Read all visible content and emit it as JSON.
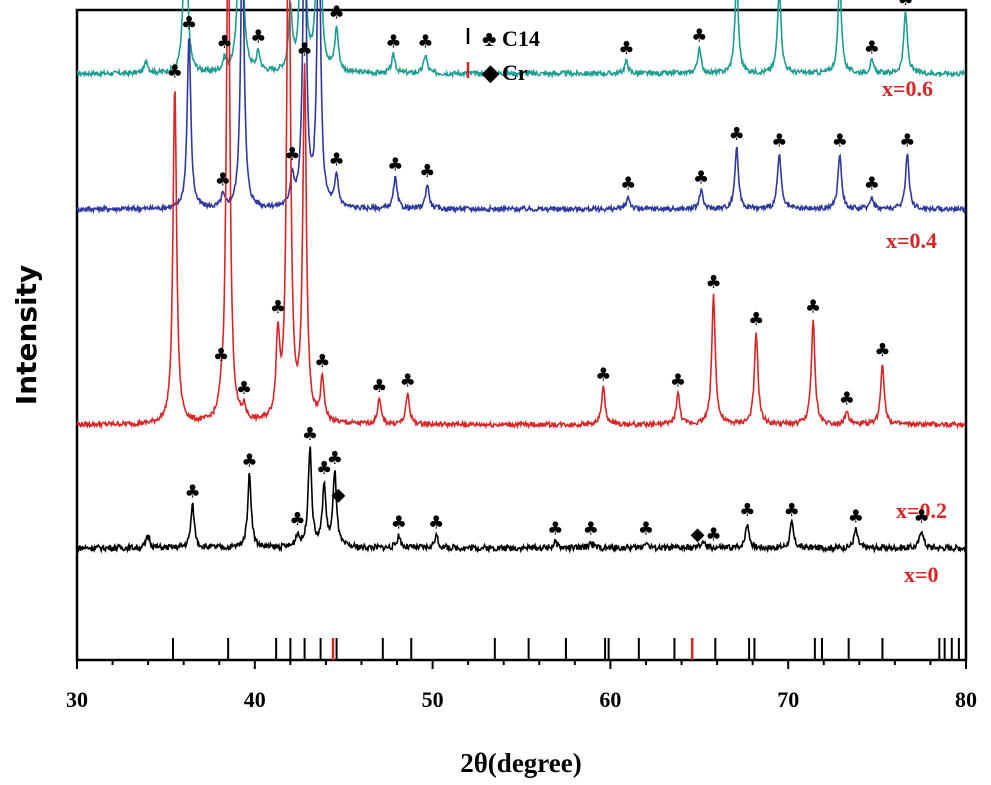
{
  "chart_data": {
    "type": "line",
    "title": "",
    "xlabel": "2θ(degree)",
    "ylabel": "Intensity",
    "xlim": [
      30,
      80
    ],
    "x_ticks": [
      30,
      40,
      50,
      60,
      70,
      80
    ],
    "x_minor_step": 2,
    "grid": false,
    "colors": {
      "C14": "#000000",
      "Cr": "#d62728"
    },
    "legend": {
      "position": "top-center",
      "entries": [
        {
          "name": "C14",
          "symbol": "♣",
          "line_color": "#000000"
        },
        {
          "name": "Cr",
          "symbol": "◆",
          "line_color": "#d62728"
        }
      ]
    },
    "series": [
      {
        "name": "x=0.6",
        "color": "#1e9d92",
        "baseline": 0.9,
        "noise": 0.004,
        "peaks": [
          [
            33.9,
            0.02
          ],
          [
            36.1,
            0.3
          ],
          [
            38.3,
            0.02
          ],
          [
            39.2,
            0.47
          ],
          [
            40.2,
            0.03
          ],
          [
            42.0,
            0.1
          ],
          [
            42.7,
            0.45
          ],
          [
            43.6,
            0.41
          ],
          [
            44.6,
            0.07
          ],
          [
            47.8,
            0.03
          ],
          [
            49.6,
            0.03
          ],
          [
            60.9,
            0.02
          ],
          [
            65.0,
            0.04
          ],
          [
            67.1,
            0.15
          ],
          [
            69.5,
            0.14
          ],
          [
            72.9,
            0.15
          ],
          [
            74.7,
            0.02
          ],
          [
            76.6,
            0.1
          ]
        ],
        "markers": [
          36.1,
          38.3,
          39.2,
          40.2,
          42.0,
          42.7,
          43.6,
          44.6,
          47.8,
          49.6,
          60.9,
          65.0,
          67.1,
          69.5,
          72.9,
          74.7,
          76.6
        ]
      },
      {
        "name": "x=0.4",
        "color": "#2e3a9e",
        "baseline": 0.68,
        "noise": 0.004,
        "peaks": [
          [
            36.3,
            0.28
          ],
          [
            38.2,
            0.02
          ],
          [
            39.3,
            0.45
          ],
          [
            42.1,
            0.05
          ],
          [
            42.8,
            0.5
          ],
          [
            43.6,
            0.48
          ],
          [
            44.6,
            0.05
          ],
          [
            47.9,
            0.05
          ],
          [
            49.7,
            0.04
          ],
          [
            61.0,
            0.02
          ],
          [
            65.1,
            0.03
          ],
          [
            67.1,
            0.1
          ],
          [
            69.5,
            0.09
          ],
          [
            72.9,
            0.09
          ],
          [
            74.7,
            0.02
          ],
          [
            76.7,
            0.09
          ]
        ],
        "markers": [
          36.3,
          38.2,
          39.3,
          42.1,
          42.8,
          43.6,
          44.6,
          47.9,
          49.7,
          61.0,
          65.1,
          67.1,
          69.5,
          72.9,
          74.7,
          76.7
        ]
      },
      {
        "name": "x=0.2",
        "color": "#d62728",
        "baseline": 0.33,
        "noise": 0.004,
        "peaks": [
          [
            35.5,
            0.55
          ],
          [
            38.1,
            0.02
          ],
          [
            38.5,
            0.84
          ],
          [
            39.4,
            0.02
          ],
          [
            41.3,
            0.13
          ],
          [
            41.9,
            0.89
          ],
          [
            42.8,
            0.57
          ],
          [
            43.8,
            0.07
          ],
          [
            47.0,
            0.04
          ],
          [
            48.6,
            0.05
          ],
          [
            59.6,
            0.06
          ],
          [
            63.8,
            0.05
          ],
          [
            65.8,
            0.21
          ],
          [
            68.2,
            0.15
          ],
          [
            71.4,
            0.17
          ],
          [
            73.3,
            0.02
          ],
          [
            75.3,
            0.1
          ]
        ],
        "markers": [
          35.5,
          38.1,
          38.5,
          39.4,
          41.3,
          41.9,
          42.8,
          43.8,
          47.0,
          48.6,
          59.6,
          63.8,
          65.8,
          68.2,
          71.4,
          73.3,
          75.3
        ]
      },
      {
        "name": "x=0",
        "color": "#000000",
        "baseline": 0.13,
        "noise": 0.005,
        "peaks": [
          [
            34.0,
            0.02
          ],
          [
            36.5,
            0.07
          ],
          [
            39.7,
            0.12
          ],
          [
            42.4,
            0.02
          ],
          [
            43.1,
            0.16
          ],
          [
            43.9,
            0.1
          ],
          [
            44.5,
            0.12
          ],
          [
            48.1,
            0.02
          ],
          [
            50.2,
            0.02
          ],
          [
            56.9,
            0.01
          ],
          [
            58.9,
            0.01
          ],
          [
            62.0,
            0.01
          ],
          [
            65.2,
            0.01
          ],
          [
            67.7,
            0.04
          ],
          [
            70.2,
            0.04
          ],
          [
            73.8,
            0.03
          ],
          [
            77.5,
            0.03
          ]
        ],
        "markers": [
          36.5,
          39.7,
          42.4,
          43.1,
          43.9,
          44.5,
          48.1,
          50.2,
          56.9,
          58.9,
          62.0,
          65.8,
          67.7,
          70.2,
          73.8,
          77.5
        ],
        "cr_markers": [
          44.7,
          64.9
        ]
      }
    ],
    "reference_lines": {
      "C14": [
        35.4,
        38.5,
        41.2,
        42.0,
        42.8,
        43.7,
        44.6,
        47.2,
        48.8,
        53.5,
        55.4,
        57.5,
        59.7,
        59.9,
        61.6,
        63.6,
        65.9,
        67.8,
        68.1,
        71.5,
        71.9,
        73.4,
        75.3,
        78.5,
        78.8,
        79.2,
        79.6
      ],
      "Cr": [
        44.4,
        64.6
      ]
    }
  }
}
